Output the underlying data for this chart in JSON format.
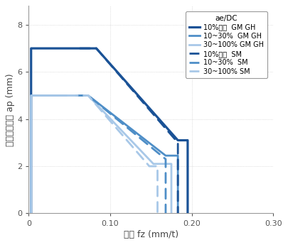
{
  "title": "",
  "xlabel": "送り fz (mm/t)",
  "ylabel": "縦切込み深さ ap (mm)",
  "xlim": [
    0,
    0.3
  ],
  "ylim": [
    0,
    8.8
  ],
  "xticks": [
    0,
    0.1,
    0.2,
    0.3
  ],
  "yticks": [
    0,
    2.0,
    4.0,
    6.0,
    8.0
  ],
  "legend_title": "ae/DC",
  "background_color": "#ffffff",
  "grid_color": "#c8c8c8",
  "curves": [
    {
      "label": "10%以下  GM GH",
      "color": "#1a5296",
      "linewidth": 2.3,
      "linestyle": "solid",
      "points": [
        [
          0.003,
          0.0
        ],
        [
          0.003,
          7.0
        ],
        [
          0.083,
          7.0
        ],
        [
          0.183,
          3.1
        ],
        [
          0.195,
          3.1
        ],
        [
          0.195,
          0.0
        ]
      ]
    },
    {
      "label": "10~30%  GM GH",
      "color": "#4e8ec7",
      "linewidth": 2.0,
      "linestyle": "solid",
      "points": [
        [
          0.003,
          0.0
        ],
        [
          0.003,
          5.0
        ],
        [
          0.073,
          5.0
        ],
        [
          0.168,
          2.45
        ],
        [
          0.183,
          2.45
        ],
        [
          0.183,
          0.0
        ]
      ]
    },
    {
      "label": "30~100% GM GH",
      "color": "#a8c8e8",
      "linewidth": 2.0,
      "linestyle": "solid",
      "points": [
        [
          0.003,
          0.0
        ],
        [
          0.003,
          5.0
        ],
        [
          0.073,
          5.0
        ],
        [
          0.153,
          2.1
        ],
        [
          0.175,
          2.1
        ],
        [
          0.175,
          0.0
        ]
      ]
    },
    {
      "label": "10%以下  SM",
      "color": "#1a5296",
      "linewidth": 2.0,
      "linestyle": "dashed",
      "points": [
        [
          0.063,
          7.0
        ],
        [
          0.083,
          7.0
        ],
        [
          0.183,
          3.0
        ],
        [
          0.183,
          0.0
        ]
      ]
    },
    {
      "label": "10~30%  SM",
      "color": "#4e8ec7",
      "linewidth": 2.0,
      "linestyle": "dashed",
      "points": [
        [
          0.058,
          5.0
        ],
        [
          0.073,
          5.0
        ],
        [
          0.168,
          2.3
        ],
        [
          0.168,
          0.0
        ]
      ]
    },
    {
      "label": "30~100% SM",
      "color": "#a8c8e8",
      "linewidth": 2.0,
      "linestyle": "dashed",
      "points": [
        [
          0.048,
          5.0
        ],
        [
          0.073,
          5.0
        ],
        [
          0.148,
          2.0
        ],
        [
          0.158,
          2.0
        ],
        [
          0.158,
          0.0
        ]
      ]
    }
  ]
}
